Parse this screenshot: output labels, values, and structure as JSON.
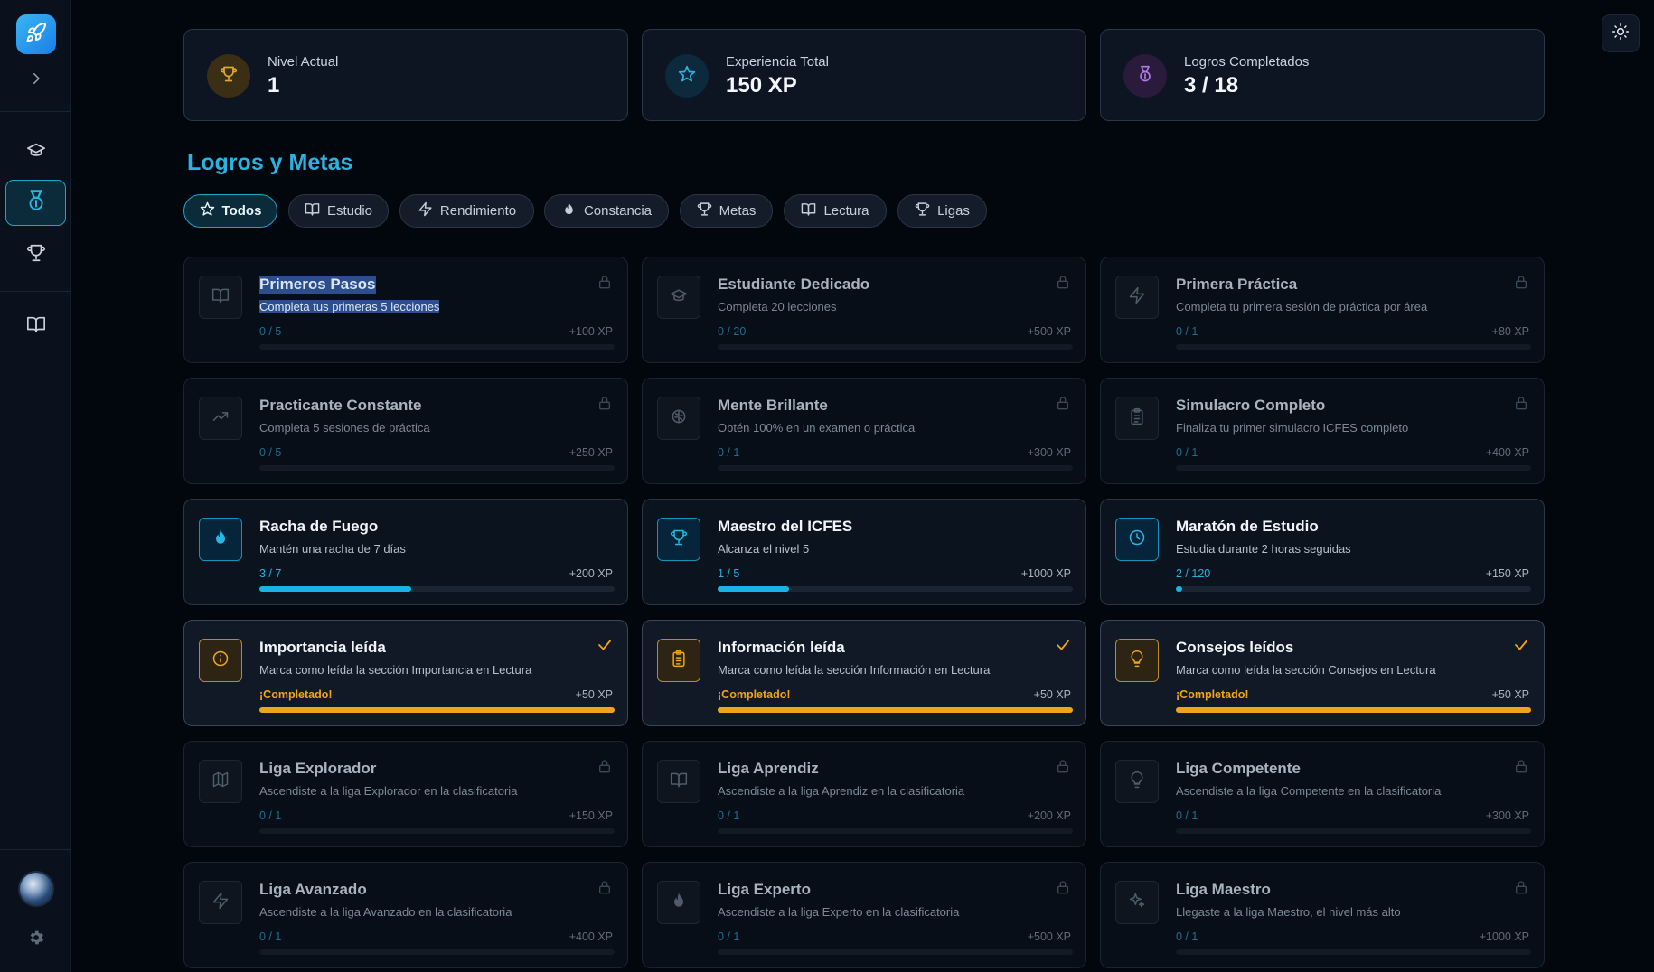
{
  "stats": [
    {
      "label": "Nivel Actual",
      "value": "1",
      "icon": "trophy-icon",
      "color": "#e0a92a"
    },
    {
      "label": "Experiencia Total",
      "value": "150 XP",
      "icon": "star-icon",
      "color": "#2ab3e0"
    },
    {
      "label": "Logros Completados",
      "value": "3 / 18",
      "icon": "medal-icon",
      "color": "#b07ae8"
    }
  ],
  "section_title": "Logros y Metas",
  "filters": [
    {
      "label": "Todos",
      "icon": "star-icon",
      "active": true
    },
    {
      "label": "Estudio",
      "icon": "book-icon"
    },
    {
      "label": "Rendimiento",
      "icon": "bolt-icon"
    },
    {
      "label": "Constancia",
      "icon": "flame-icon"
    },
    {
      "label": "Metas",
      "icon": "trophy-icon"
    },
    {
      "label": "Lectura",
      "icon": "book-open-icon"
    },
    {
      "label": "Ligas",
      "icon": "trophy-icon"
    }
  ],
  "achievements": [
    {
      "title": "Primeros Pasos",
      "desc": "Completa tus primeras 5 lecciones",
      "progress": "0 / 5",
      "xp": "+100 XP",
      "state": "locked",
      "icon": "book-icon",
      "fill": 0
    },
    {
      "title": "Estudiante Dedicado",
      "desc": "Completa 20 lecciones",
      "progress": "0 / 20",
      "xp": "+500 XP",
      "state": "locked",
      "icon": "graduation-cap-icon",
      "fill": 0
    },
    {
      "title": "Primera Práctica",
      "desc": "Completa tu primera sesión de práctica por área",
      "progress": "0 / 1",
      "xp": "+80 XP",
      "state": "locked",
      "icon": "bolt-icon",
      "fill": 0
    },
    {
      "title": "Practicante Constante",
      "desc": "Completa 5 sesiones de práctica",
      "progress": "0 / 5",
      "xp": "+250 XP",
      "state": "locked",
      "icon": "trending-up-icon",
      "fill": 0
    },
    {
      "title": "Mente Brillante",
      "desc": "Obtén 100% en un examen o práctica",
      "progress": "0 / 1",
      "xp": "+300 XP",
      "state": "locked",
      "icon": "brain-icon",
      "fill": 0
    },
    {
      "title": "Simulacro Completo",
      "desc": "Finaliza tu primer simulacro ICFES completo",
      "progress": "0 / 1",
      "xp": "+400 XP",
      "state": "locked",
      "icon": "clipboard-icon",
      "fill": 0
    },
    {
      "title": "Racha de Fuego",
      "desc": "Mantén una racha de 7 días",
      "progress": "3 / 7",
      "xp": "+200 XP",
      "state": "progress",
      "icon": "flame-icon",
      "fill": 0.4286
    },
    {
      "title": "Maestro del ICFES",
      "desc": "Alcanza el nivel 5",
      "progress": "1 / 5",
      "xp": "+1000 XP",
      "state": "progress",
      "icon": "trophy-icon",
      "fill": 0.2
    },
    {
      "title": "Maratón de Estudio",
      "desc": "Estudia durante 2 horas seguidas",
      "progress": "2 / 120",
      "xp": "+150 XP",
      "state": "progress",
      "icon": "clock-icon",
      "fill": 0.0167
    },
    {
      "title": "Importancia leída",
      "desc": "Marca como leída la sección Importancia en Lectura",
      "progress": "¡Completado!",
      "xp": "+50 XP",
      "state": "done",
      "icon": "info-icon",
      "fill": 1
    },
    {
      "title": "Información leída",
      "desc": "Marca como leída la sección Información en Lectura",
      "progress": "¡Completado!",
      "xp": "+50 XP",
      "state": "done",
      "icon": "clipboard-icon",
      "fill": 1
    },
    {
      "title": "Consejos leídos",
      "desc": "Marca como leída la sección Consejos en Lectura",
      "progress": "¡Completado!",
      "xp": "+50 XP",
      "state": "done",
      "icon": "lightbulb-icon",
      "fill": 1
    },
    {
      "title": "Liga Explorador",
      "desc": "Ascendiste a la liga Explorador en la clasificatoria",
      "progress": "0 / 1",
      "xp": "+150 XP",
      "state": "locked",
      "icon": "map-icon",
      "fill": 0
    },
    {
      "title": "Liga Aprendiz",
      "desc": "Ascendiste a la liga Aprendiz en la clasificatoria",
      "progress": "0 / 1",
      "xp": "+200 XP",
      "state": "locked",
      "icon": "book-open-icon",
      "fill": 0
    },
    {
      "title": "Liga Competente",
      "desc": "Ascendiste a la liga Competente en la clasificatoria",
      "progress": "0 / 1",
      "xp": "+300 XP",
      "state": "locked",
      "icon": "lightbulb-icon",
      "fill": 0
    },
    {
      "title": "Liga Avanzado",
      "desc": "Ascendiste a la liga Avanzado en la clasificatoria",
      "progress": "0 / 1",
      "xp": "+400 XP",
      "state": "locked",
      "icon": "bolt-icon",
      "fill": 0
    },
    {
      "title": "Liga Experto",
      "desc": "Ascendiste a la liga Experto en la clasificatoria",
      "progress": "0 / 1",
      "xp": "+500 XP",
      "state": "locked",
      "icon": "flame-icon",
      "fill": 0
    },
    {
      "title": "Liga Maestro",
      "desc": "Llegaste a la liga Maestro, el nivel más alto",
      "progress": "0 / 1",
      "xp": "+1000 XP",
      "state": "locked",
      "icon": "sparkles-icon",
      "fill": 0
    }
  ]
}
